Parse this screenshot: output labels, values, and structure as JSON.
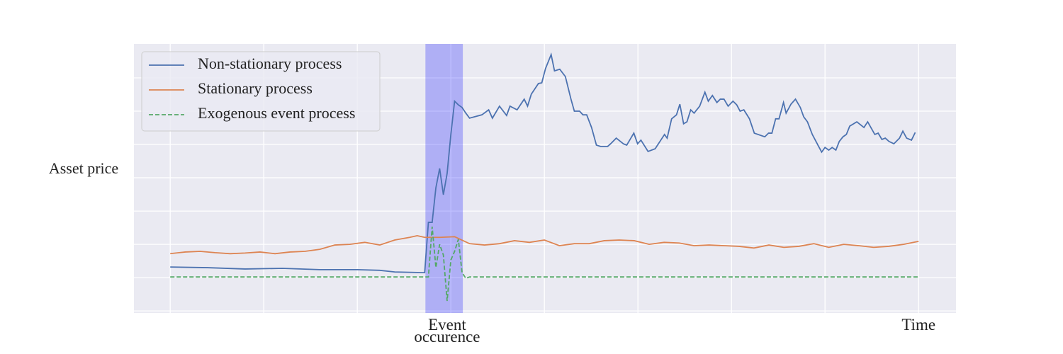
{
  "chart_data": {
    "type": "line",
    "ylabel": "Asset price",
    "xlim": [
      -9.7,
      210
    ],
    "ylim": [
      -0.06,
      8.02
    ],
    "xticks": [
      {
        "value": 74,
        "label": "Event occurence"
      },
      {
        "value": 200,
        "label": "Time"
      }
    ],
    "xgrid": [
      0,
      25,
      50,
      75,
      100,
      125,
      150,
      175,
      200
    ],
    "ygrid": [
      0,
      1,
      2,
      3,
      4,
      5,
      6,
      7
    ],
    "grid": true,
    "legend": "upper left",
    "span": {
      "xlim": [
        68.2,
        78.2
      ],
      "color": "#0000ff",
      "opacity": 0.25
    },
    "series": [
      {
        "name": "Non-stationary process",
        "color": "#4c72b0",
        "linestyle": "solid",
        "x": [
          0,
          10,
          20,
          30,
          40,
          50,
          56,
          60,
          68,
          69,
          70,
          71,
          72,
          73,
          74,
          75,
          76,
          77,
          78,
          79,
          80.0,
          83.3,
          85.1,
          86.1,
          88.0,
          89.9,
          90.8,
          92.7,
          94.6,
          95.5,
          96.5,
          98.4,
          99.3,
          100.3,
          101.8,
          102.7,
          104.1,
          105.6,
          107.1,
          108.0,
          109.4,
          110.3,
          111.3,
          112.6,
          113.9,
          115.0,
          116.9,
          117.7,
          119.2,
          121.1,
          122.0,
          123.9,
          124.9,
          125.8,
          127.7,
          129.6,
          132.1,
          132.8,
          134.0,
          135.3,
          136.2,
          137.2,
          138.1,
          139.1,
          140.0,
          141.5,
          142.9,
          143.8,
          144.9,
          146.1,
          147.0,
          148.0,
          149.1,
          150.4,
          151.4,
          152.3,
          153.3,
          154.8,
          156.1,
          158.9,
          159.9,
          160.8,
          161.8,
          162.7,
          163.9,
          164.6,
          165.9,
          167.1,
          168.4,
          169.3,
          170.3,
          171.6,
          173.1,
          174.1,
          175.0,
          176.0,
          176.9,
          177.9,
          178.8,
          179.8,
          180.7,
          181.6,
          183.5,
          185.4,
          186.4,
          188.3,
          189.2,
          190.2,
          191.1,
          192.1,
          193.4,
          194.9,
          195.8,
          196.8,
          198.1,
          199.1
        ],
        "values": [
          1.32,
          1.3,
          1.26,
          1.28,
          1.24,
          1.24,
          1.22,
          1.17,
          1.15,
          2.66,
          2.66,
          3.7,
          4.28,
          3.49,
          4.13,
          5.3,
          6.3,
          6.19,
          6.11,
          5.94,
          5.79,
          5.89,
          6.04,
          5.79,
          6.15,
          5.87,
          6.15,
          6.04,
          6.36,
          6.15,
          6.51,
          6.83,
          6.85,
          7.28,
          7.7,
          7.21,
          7.26,
          7.04,
          6.36,
          6.0,
          6.0,
          5.89,
          5.89,
          5.51,
          4.98,
          4.94,
          4.94,
          5.02,
          5.19,
          5.02,
          4.98,
          5.34,
          5.02,
          5.13,
          4.79,
          4.87,
          5.3,
          5.19,
          5.77,
          5.89,
          6.21,
          5.62,
          5.68,
          6.04,
          5.94,
          6.15,
          6.57,
          6.3,
          6.47,
          6.26,
          6.36,
          6.36,
          6.15,
          6.3,
          6.19,
          6.0,
          6.04,
          5.77,
          5.34,
          5.23,
          5.34,
          5.34,
          5.77,
          5.77,
          6.26,
          5.94,
          6.21,
          6.36,
          6.11,
          5.83,
          5.68,
          5.3,
          4.98,
          4.77,
          4.91,
          4.83,
          4.91,
          4.83,
          5.09,
          5.23,
          5.3,
          5.55,
          5.68,
          5.51,
          5.68,
          5.3,
          5.34,
          5.15,
          5.19,
          5.09,
          5.02,
          5.19,
          5.4,
          5.19,
          5.13,
          5.36
        ]
      },
      {
        "name": "Stationary process",
        "color": "#dd8452",
        "linestyle": "solid",
        "x": [
          0,
          4,
          8,
          12,
          16,
          20,
          24,
          28,
          32,
          36,
          40,
          44,
          48,
          52,
          56,
          60,
          64,
          66,
          68,
          72,
          76,
          80,
          84,
          88,
          92,
          96,
          100,
          104,
          108,
          112,
          116,
          120,
          124,
          128,
          132,
          136,
          140,
          144,
          148,
          152,
          156,
          160,
          164,
          168,
          172,
          176,
          180,
          184,
          188,
          192,
          196,
          200
        ],
        "values": [
          1.72,
          1.77,
          1.79,
          1.75,
          1.72,
          1.74,
          1.77,
          1.72,
          1.77,
          1.79,
          1.85,
          1.98,
          2.0,
          2.06,
          1.98,
          2.13,
          2.21,
          2.26,
          2.21,
          2.21,
          2.23,
          2.02,
          1.98,
          2.02,
          2.11,
          2.06,
          2.13,
          1.96,
          2.02,
          2.02,
          2.11,
          2.13,
          2.11,
          2.0,
          2.06,
          2.04,
          1.96,
          1.98,
          1.96,
          1.94,
          1.89,
          1.98,
          1.91,
          1.94,
          2.02,
          1.91,
          2.0,
          1.96,
          1.91,
          1.94,
          2.0,
          2.09
        ]
      },
      {
        "name": "Exogenous event process",
        "color": "#55a868",
        "linestyle": "dashed",
        "x": [
          0,
          68,
          69,
          70,
          71,
          72,
          73,
          74,
          75,
          76,
          77,
          78,
          79,
          80,
          200
        ],
        "values": [
          1.02,
          1.02,
          1.02,
          2.53,
          1.3,
          2.0,
          1.68,
          0.3,
          1.53,
          1.79,
          2.15,
          1.15,
          0.98,
          1.02,
          1.02
        ]
      }
    ]
  }
}
